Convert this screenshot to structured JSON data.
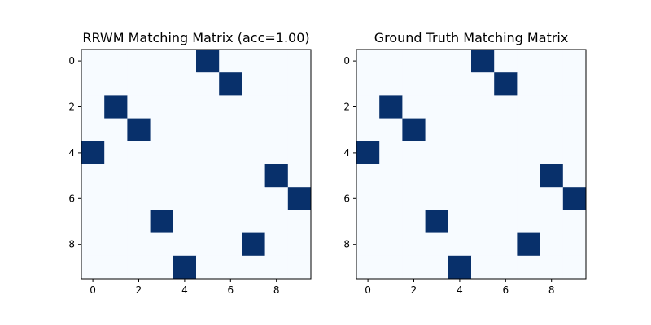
{
  "chart_data": [
    {
      "type": "heatmap",
      "title": "RRWM Matching Matrix (acc=1.00)",
      "rows": 10,
      "cols": 10,
      "xticks": [
        0,
        2,
        4,
        6,
        8
      ],
      "yticks": [
        0,
        2,
        4,
        6,
        8
      ],
      "matrix": [
        [
          0,
          0,
          0,
          0,
          0,
          1,
          0,
          0,
          0,
          0
        ],
        [
          0,
          0,
          0,
          0,
          0,
          0,
          1,
          0,
          0,
          0
        ],
        [
          0,
          1,
          0,
          0,
          0,
          0,
          0,
          0,
          0,
          0
        ],
        [
          0,
          0,
          1,
          0,
          0,
          0,
          0,
          0,
          0,
          0
        ],
        [
          1,
          0,
          0,
          0,
          0,
          0,
          0,
          0,
          0,
          0
        ],
        [
          0,
          0,
          0,
          0,
          0,
          0,
          0,
          0,
          1,
          0
        ],
        [
          0,
          0,
          0,
          0,
          0,
          0,
          0,
          0,
          0,
          1
        ],
        [
          0,
          0,
          0,
          1,
          0,
          0,
          0,
          0,
          0,
          0
        ],
        [
          0,
          0,
          0,
          0,
          0,
          0,
          0,
          1,
          0,
          0
        ],
        [
          0,
          0,
          0,
          0,
          1,
          0,
          0,
          0,
          0,
          0
        ]
      ],
      "colormap": {
        "low": "#f7fbff",
        "high": "#08306b"
      }
    },
    {
      "type": "heatmap",
      "title": "Ground Truth Matching Matrix",
      "rows": 10,
      "cols": 10,
      "xticks": [
        0,
        2,
        4,
        6,
        8
      ],
      "yticks": [
        0,
        2,
        4,
        6,
        8
      ],
      "matrix": [
        [
          0,
          0,
          0,
          0,
          0,
          1,
          0,
          0,
          0,
          0
        ],
        [
          0,
          0,
          0,
          0,
          0,
          0,
          1,
          0,
          0,
          0
        ],
        [
          0,
          1,
          0,
          0,
          0,
          0,
          0,
          0,
          0,
          0
        ],
        [
          0,
          0,
          1,
          0,
          0,
          0,
          0,
          0,
          0,
          0
        ],
        [
          1,
          0,
          0,
          0,
          0,
          0,
          0,
          0,
          0,
          0
        ],
        [
          0,
          0,
          0,
          0,
          0,
          0,
          0,
          0,
          1,
          0
        ],
        [
          0,
          0,
          0,
          0,
          0,
          0,
          0,
          0,
          0,
          1
        ],
        [
          0,
          0,
          0,
          1,
          0,
          0,
          0,
          0,
          0,
          0
        ],
        [
          0,
          0,
          0,
          0,
          0,
          0,
          0,
          1,
          0,
          0
        ],
        [
          0,
          0,
          0,
          0,
          1,
          0,
          0,
          0,
          0,
          0
        ]
      ],
      "colormap": {
        "low": "#f7fbff",
        "high": "#08306b"
      }
    }
  ]
}
